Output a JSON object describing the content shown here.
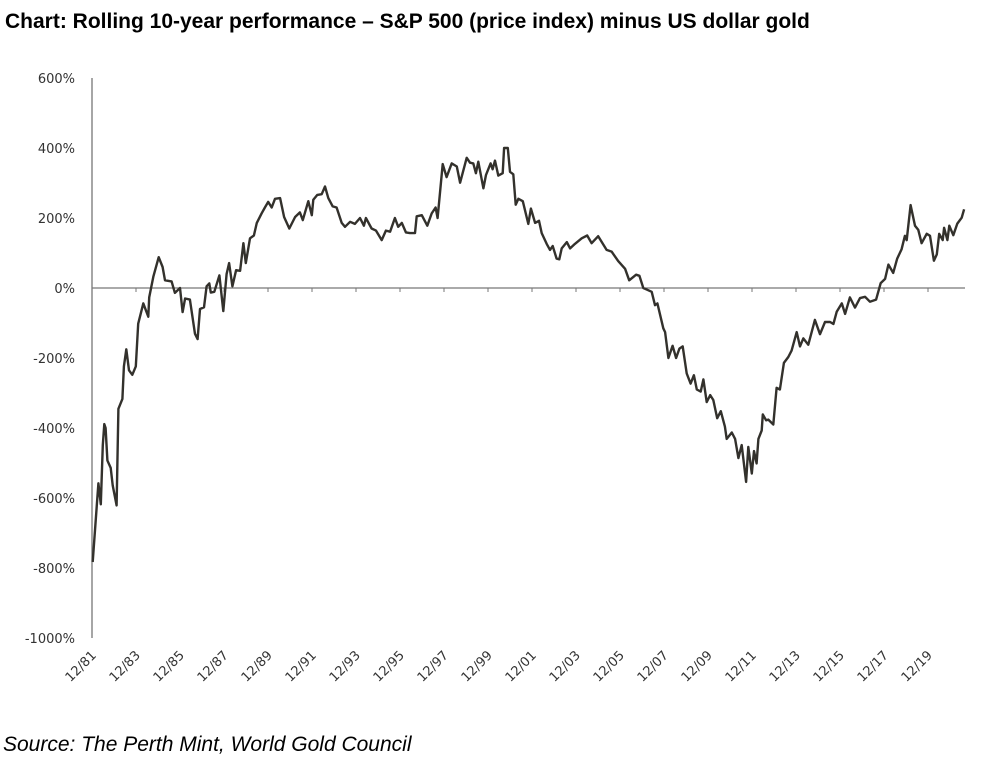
{
  "chart_data": {
    "type": "line",
    "title": "Chart: Rolling 10-year performance – S&P 500 (price index) minus US dollar gold",
    "source": "Source: The Perth Mint, World Gold Council",
    "xlabel": "",
    "ylabel": "",
    "ylim": [
      -1000,
      600
    ],
    "xlim": [
      1981.92,
      2021.6
    ],
    "y_ticks": [
      600,
      400,
      200,
      0,
      -200,
      -400,
      -600,
      -800,
      -1000
    ],
    "y_tick_labels": [
      "600%",
      "400%",
      "200%",
      "0%",
      "-200%",
      "-400%",
      "-600%",
      "-800%",
      "-1000%"
    ],
    "x_ticks": [
      1981.92,
      1983.92,
      1985.92,
      1987.92,
      1989.92,
      1991.92,
      1993.92,
      1995.92,
      1997.92,
      1999.92,
      2001.92,
      2003.92,
      2005.92,
      2007.92,
      2009.92,
      2011.92,
      2013.92,
      2015.92,
      2017.92,
      2019.92
    ],
    "x_tick_labels": [
      "12/81",
      "12/83",
      "12/85",
      "12/87",
      "12/89",
      "12/91",
      "12/93",
      "12/95",
      "12/97",
      "12/99",
      "12/01",
      "12/03",
      "12/05",
      "12/07",
      "12/09",
      "12/11",
      "12/13",
      "12/15",
      "12/17",
      "12/19"
    ],
    "grid": false,
    "line_color": "#33312c",
    "series": [
      {
        "name": "S&P 500 minus US dollar gold (rolling 10-year %)",
        "points": [
          [
            1981.95,
            -783
          ],
          [
            1982.21,
            -558
          ],
          [
            1982.32,
            -618
          ],
          [
            1982.41,
            -449
          ],
          [
            1982.48,
            -389
          ],
          [
            1982.54,
            -400
          ],
          [
            1982.62,
            -493
          ],
          [
            1982.77,
            -514
          ],
          [
            1982.86,
            -564
          ],
          [
            1983.04,
            -621
          ],
          [
            1983.12,
            -345
          ],
          [
            1983.3,
            -317
          ],
          [
            1983.37,
            -224
          ],
          [
            1983.48,
            -175
          ],
          [
            1983.6,
            -235
          ],
          [
            1983.75,
            -248
          ],
          [
            1983.91,
            -224
          ],
          [
            1984.02,
            -102
          ],
          [
            1984.25,
            -44
          ],
          [
            1984.48,
            -82
          ],
          [
            1984.52,
            -27
          ],
          [
            1984.71,
            33
          ],
          [
            1984.95,
            88
          ],
          [
            1985.13,
            60
          ],
          [
            1985.24,
            22
          ],
          [
            1985.54,
            19
          ],
          [
            1985.69,
            -14
          ],
          [
            1985.92,
            0
          ],
          [
            1986.04,
            -69
          ],
          [
            1986.15,
            -30
          ],
          [
            1986.37,
            -33
          ],
          [
            1986.6,
            -131
          ],
          [
            1986.72,
            -146
          ],
          [
            1986.83,
            -60
          ],
          [
            1987.01,
            -55
          ],
          [
            1987.13,
            5
          ],
          [
            1987.25,
            13
          ],
          [
            1987.32,
            -13
          ],
          [
            1987.48,
            -11
          ],
          [
            1987.71,
            36
          ],
          [
            1987.89,
            -66
          ],
          [
            1988.04,
            40
          ],
          [
            1988.15,
            71
          ],
          [
            1988.3,
            5
          ],
          [
            1988.47,
            51
          ],
          [
            1988.65,
            49
          ],
          [
            1988.8,
            128
          ],
          [
            1988.91,
            71
          ],
          [
            1989.1,
            142
          ],
          [
            1989.28,
            150
          ],
          [
            1989.41,
            186
          ],
          [
            1989.63,
            213
          ],
          [
            1989.78,
            230
          ],
          [
            1989.93,
            246
          ],
          [
            1990.09,
            230
          ],
          [
            1990.24,
            255
          ],
          [
            1990.47,
            257
          ],
          [
            1990.65,
            203
          ],
          [
            1990.89,
            170
          ],
          [
            1991.15,
            203
          ],
          [
            1991.37,
            216
          ],
          [
            1991.5,
            194
          ],
          [
            1991.75,
            248
          ],
          [
            1991.91,
            208
          ],
          [
            1991.98,
            252
          ],
          [
            1992.16,
            266
          ],
          [
            1992.36,
            268
          ],
          [
            1992.51,
            290
          ],
          [
            1992.66,
            257
          ],
          [
            1992.86,
            233
          ],
          [
            1993.04,
            230
          ],
          [
            1993.27,
            186
          ],
          [
            1993.42,
            175
          ],
          [
            1993.65,
            189
          ],
          [
            1993.87,
            183
          ],
          [
            1994.1,
            200
          ],
          [
            1994.28,
            178
          ],
          [
            1994.37,
            200
          ],
          [
            1994.63,
            170
          ],
          [
            1994.83,
            164
          ],
          [
            1995.09,
            137
          ],
          [
            1995.28,
            164
          ],
          [
            1995.47,
            161
          ],
          [
            1995.69,
            200
          ],
          [
            1995.84,
            175
          ],
          [
            1996.0,
            186
          ],
          [
            1996.19,
            159
          ],
          [
            1996.37,
            157
          ],
          [
            1996.6,
            157
          ],
          [
            1996.68,
            205
          ],
          [
            1996.91,
            208
          ],
          [
            1997.16,
            178
          ],
          [
            1997.36,
            213
          ],
          [
            1997.54,
            230
          ],
          [
            1997.63,
            200
          ],
          [
            1997.86,
            354
          ],
          [
            1998.04,
            317
          ],
          [
            1998.27,
            356
          ],
          [
            1998.5,
            347
          ],
          [
            1998.65,
            301
          ],
          [
            1998.95,
            372
          ],
          [
            1999.1,
            358
          ],
          [
            1999.25,
            356
          ],
          [
            1999.37,
            328
          ],
          [
            1999.48,
            361
          ],
          [
            1999.71,
            285
          ],
          [
            1999.83,
            323
          ],
          [
            2000.04,
            356
          ],
          [
            2000.13,
            339
          ],
          [
            2000.24,
            364
          ],
          [
            2000.39,
            321
          ],
          [
            2000.59,
            328
          ],
          [
            2000.65,
            400
          ],
          [
            2000.82,
            400
          ],
          [
            2000.92,
            332
          ],
          [
            2001.07,
            325
          ],
          [
            2001.18,
            238
          ],
          [
            2001.3,
            255
          ],
          [
            2001.5,
            248
          ],
          [
            2001.75,
            183
          ],
          [
            2001.87,
            227
          ],
          [
            2002.06,
            186
          ],
          [
            2002.24,
            192
          ],
          [
            2002.36,
            157
          ],
          [
            2002.59,
            126
          ],
          [
            2002.74,
            109
          ],
          [
            2002.86,
            120
          ],
          [
            2003.04,
            84
          ],
          [
            2003.16,
            82
          ],
          [
            2003.27,
            113
          ],
          [
            2003.5,
            131
          ],
          [
            2003.65,
            113
          ],
          [
            2003.87,
            126
          ],
          [
            2004.18,
            142
          ],
          [
            2004.43,
            150
          ],
          [
            2004.63,
            128
          ],
          [
            2004.93,
            148
          ],
          [
            2005.31,
            109
          ],
          [
            2005.54,
            104
          ],
          [
            2005.84,
            77
          ],
          [
            2006.15,
            55
          ],
          [
            2006.34,
            22
          ],
          [
            2006.65,
            38
          ],
          [
            2006.8,
            35
          ],
          [
            2006.98,
            0
          ],
          [
            2007.16,
            -5
          ],
          [
            2007.36,
            -11
          ],
          [
            2007.51,
            -49
          ],
          [
            2007.62,
            -44
          ],
          [
            2007.89,
            -115
          ],
          [
            2007.97,
            -126
          ],
          [
            2008.12,
            -200
          ],
          [
            2008.31,
            -165
          ],
          [
            2008.47,
            -200
          ],
          [
            2008.62,
            -173
          ],
          [
            2008.77,
            -167
          ],
          [
            2008.95,
            -244
          ],
          [
            2009.13,
            -273
          ],
          [
            2009.28,
            -249
          ],
          [
            2009.41,
            -290
          ],
          [
            2009.59,
            -296
          ],
          [
            2009.71,
            -261
          ],
          [
            2009.86,
            -326
          ],
          [
            2010.02,
            -306
          ],
          [
            2010.16,
            -320
          ],
          [
            2010.34,
            -372
          ],
          [
            2010.5,
            -352
          ],
          [
            2010.69,
            -396
          ],
          [
            2010.77,
            -431
          ],
          [
            2011.0,
            -413
          ],
          [
            2011.15,
            -431
          ],
          [
            2011.3,
            -486
          ],
          [
            2011.45,
            -449
          ],
          [
            2011.65,
            -554
          ],
          [
            2011.75,
            -454
          ],
          [
            2011.91,
            -530
          ],
          [
            2012.01,
            -466
          ],
          [
            2012.13,
            -501
          ],
          [
            2012.21,
            -431
          ],
          [
            2012.36,
            -407
          ],
          [
            2012.41,
            -361
          ],
          [
            2012.56,
            -378
          ],
          [
            2012.66,
            -376
          ],
          [
            2012.89,
            -390
          ],
          [
            2013.04,
            -285
          ],
          [
            2013.19,
            -290
          ],
          [
            2013.37,
            -214
          ],
          [
            2013.57,
            -197
          ],
          [
            2013.72,
            -179
          ],
          [
            2013.95,
            -126
          ],
          [
            2014.1,
            -167
          ],
          [
            2014.25,
            -144
          ],
          [
            2014.48,
            -162
          ],
          [
            2014.78,
            -91
          ],
          [
            2015.01,
            -132
          ],
          [
            2015.24,
            -97
          ],
          [
            2015.47,
            -97
          ],
          [
            2015.62,
            -103
          ],
          [
            2015.77,
            -68
          ],
          [
            2016.0,
            -44
          ],
          [
            2016.15,
            -74
          ],
          [
            2016.37,
            -27
          ],
          [
            2016.6,
            -56
          ],
          [
            2016.83,
            -29
          ],
          [
            2017.06,
            -25
          ],
          [
            2017.28,
            -39
          ],
          [
            2017.56,
            -33
          ],
          [
            2017.77,
            14
          ],
          [
            2017.97,
            26
          ],
          [
            2018.12,
            67
          ],
          [
            2018.34,
            43
          ],
          [
            2018.52,
            84
          ],
          [
            2018.72,
            111
          ],
          [
            2018.87,
            149
          ],
          [
            2018.95,
            137
          ],
          [
            2019.13,
            237
          ],
          [
            2019.33,
            178
          ],
          [
            2019.48,
            166
          ],
          [
            2019.63,
            128
          ],
          [
            2019.86,
            155
          ],
          [
            2020.01,
            149
          ],
          [
            2020.19,
            78
          ],
          [
            2020.32,
            96
          ],
          [
            2020.43,
            155
          ],
          [
            2020.59,
            137
          ],
          [
            2020.65,
            172
          ],
          [
            2020.8,
            137
          ],
          [
            2020.89,
            178
          ],
          [
            2021.07,
            151
          ],
          [
            2021.25,
            184
          ],
          [
            2021.45,
            201
          ],
          [
            2021.56,
            225
          ]
        ]
      }
    ]
  }
}
